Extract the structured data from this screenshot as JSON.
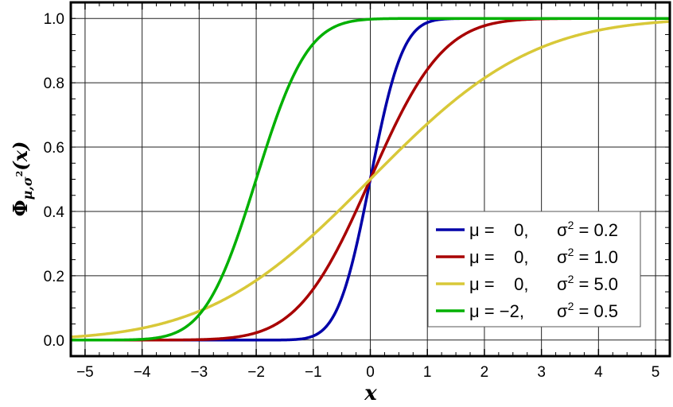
{
  "chart_data": {
    "type": "line",
    "xlabel": "x",
    "ylabel": "Φμ,σ²(x)",
    "ylabel_parts": {
      "main": "Φ",
      "sub": "μ,σ",
      "sup": "2",
      "arg": "(x)"
    },
    "xlim": [
      -5.25,
      5.25
    ],
    "ylim": [
      -0.05,
      1.05
    ],
    "xticks": [
      -5,
      -4,
      -3,
      -2,
      -1,
      0,
      1,
      2,
      3,
      4,
      5
    ],
    "xtick_labels": [
      "−5",
      "−4",
      "−3",
      "−2",
      "−1",
      "0",
      "1",
      "2",
      "3",
      "4",
      "5"
    ],
    "yticks": [
      0.0,
      0.2,
      0.4,
      0.6,
      0.8,
      1.0
    ],
    "ytick_labels": [
      "0.0",
      "0.2",
      "0.4",
      "0.6",
      "0.8",
      "1.0"
    ],
    "grid": true,
    "legend_placement": "bottom-right",
    "function": "normal cumulative distribution function",
    "series": [
      {
        "name": "μ =    0,  σ² = 0.2",
        "mu_label": "μ =    0,",
        "sigma_label": "σ",
        "sigma_value": "= 0.2",
        "mu": 0,
        "sigma2": 0.2,
        "color": "#0000a8"
      },
      {
        "name": "μ =    0,  σ² = 1.0",
        "mu_label": "μ =    0,",
        "sigma_label": "σ",
        "sigma_value": "= 1.0",
        "mu": 0,
        "sigma2": 1.0,
        "color": "#a80000"
      },
      {
        "name": "μ =    0,  σ² = 5.0",
        "mu_label": "μ =    0,",
        "sigma_label": "σ",
        "sigma_value": "= 5.0",
        "mu": 0,
        "sigma2": 5.0,
        "color": "#d8c838"
      },
      {
        "name": "μ = −2,  σ² = 0.5",
        "mu_label": "μ = −2,",
        "sigma_label": "σ",
        "sigma_value": "= 0.5",
        "mu": -2,
        "sigma2": 0.5,
        "color": "#00b000"
      }
    ]
  }
}
